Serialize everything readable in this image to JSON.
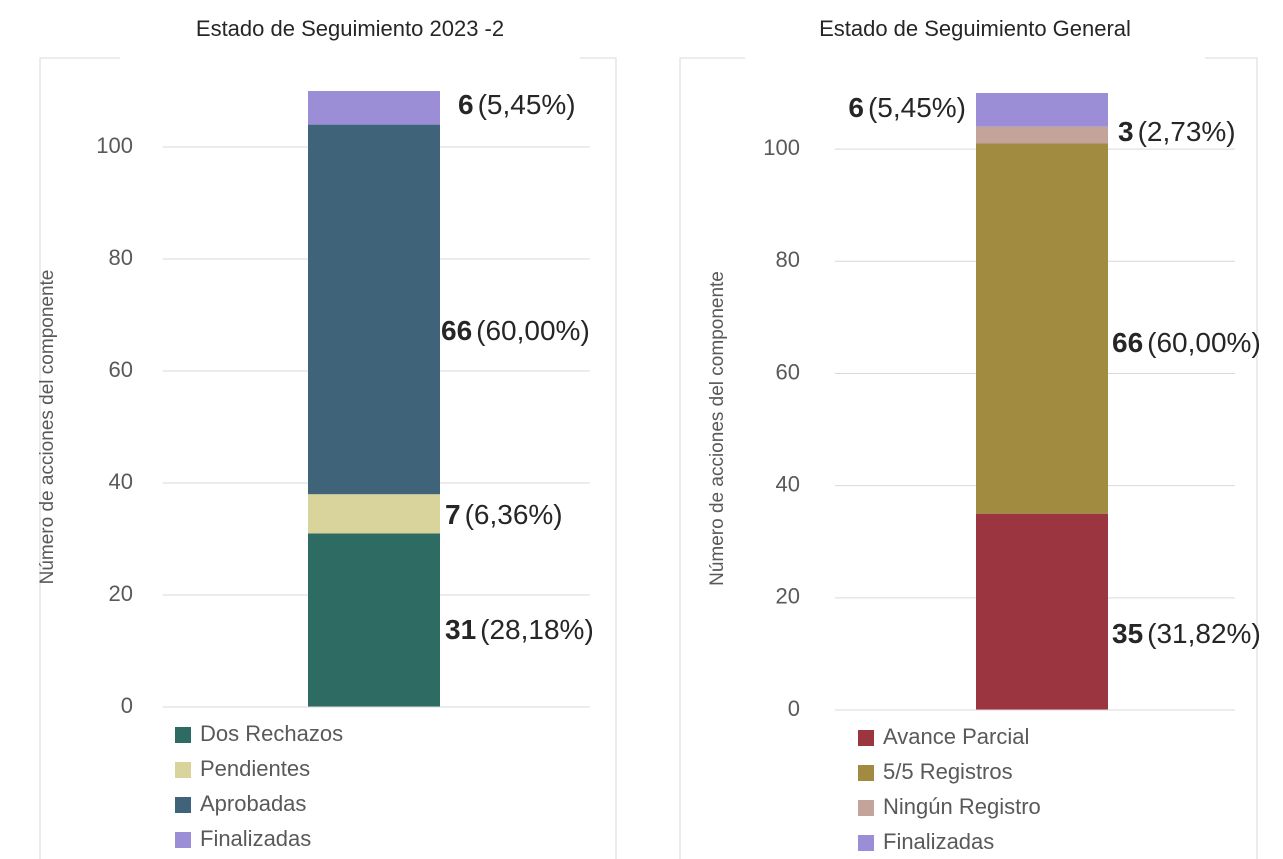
{
  "chart_data": [
    {
      "type": "stacked-bar",
      "title": "Estado de Seguimiento 2023 -2",
      "ylabel": "Número de acciones del componente",
      "ylim": [
        0,
        110
      ],
      "yticks": [
        0,
        20,
        40,
        60,
        80,
        100
      ],
      "grid": true,
      "legend": "bottom",
      "series": [
        {
          "name": "Dos Rechazos",
          "color": "#2e6b62",
          "values": [
            31
          ],
          "percent_label": "(28,18%)"
        },
        {
          "name": "Pendientes",
          "color": "#d9d49c",
          "values": [
            7
          ],
          "percent_label": "(6,36%)"
        },
        {
          "name": "Aprobadas",
          "color": "#3f6379",
          "values": [
            66
          ],
          "percent_label": "(60,00%)"
        },
        {
          "name": "Finalizadas",
          "color": "#9b8ed6",
          "values": [
            6
          ],
          "percent_label": "(5,45%)"
        }
      ]
    },
    {
      "type": "stacked-bar",
      "title": "Estado de Seguimiento General",
      "ylabel": "Número de acciones del componente",
      "ylim": [
        0,
        110
      ],
      "yticks": [
        0,
        20,
        40,
        60,
        80,
        100
      ],
      "grid": true,
      "legend": "bottom",
      "series": [
        {
          "name": "Avance Parcial",
          "color": "#9b3540",
          "values": [
            35
          ],
          "percent_label": "(31,82%)"
        },
        {
          "name": "5/5 Registros",
          "color": "#a08b40",
          "values": [
            66
          ],
          "percent_label": "(60,00%)"
        },
        {
          "name": "Ningún Registro",
          "color": "#c4a39a",
          "values": [
            3
          ],
          "percent_label": "(2,73%)"
        },
        {
          "name": "Finalizadas",
          "color": "#9b8ed6",
          "values": [
            6
          ],
          "percent_label": "(5,45%)"
        }
      ]
    }
  ]
}
